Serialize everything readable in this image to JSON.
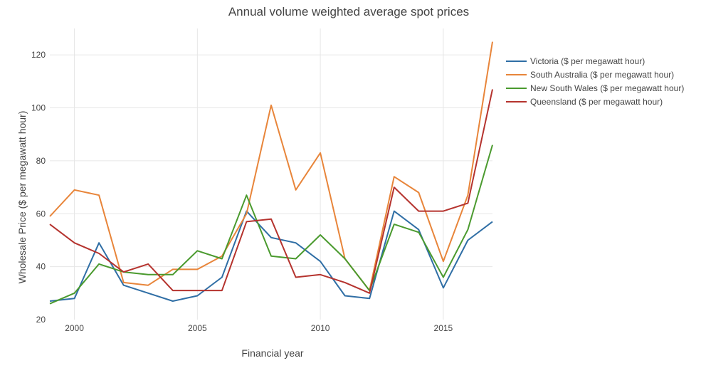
{
  "chart_data": {
    "type": "line",
    "title": "Annual volume weighted average spot prices",
    "xlabel": "Financial year",
    "ylabel": "Wholesale Price ($ per megawatt hour)",
    "x": [
      1999,
      2000,
      2001,
      2002,
      2003,
      2004,
      2005,
      2006,
      2007,
      2008,
      2009,
      2010,
      2011,
      2012,
      2013,
      2014,
      2015,
      2016,
      2017
    ],
    "xlim": [
      1999,
      2017
    ],
    "ylim": [
      20,
      130
    ],
    "x_ticks": [
      2000,
      2005,
      2010,
      2015
    ],
    "y_ticks": [
      20,
      40,
      60,
      80,
      100,
      120
    ],
    "grid": true,
    "legend_position": "top-right",
    "series": [
      {
        "name": "Victoria ($ per megawatt hour)",
        "color": "#2f6ea5",
        "values": [
          27,
          28,
          49,
          33,
          30,
          27,
          29,
          36,
          61,
          51,
          49,
          42,
          29,
          28,
          61,
          54,
          32,
          50,
          57
        ]
      },
      {
        "name": "South Australia ($ per megawatt hour)",
        "color": "#e8853a",
        "values": [
          59,
          69,
          67,
          34,
          33,
          39,
          39,
          44,
          60,
          101,
          69,
          83,
          43,
          31,
          74,
          68,
          42,
          67,
          125
        ]
      },
      {
        "name": "New South Wales ($ per megawatt hour)",
        "color": "#4a9a2e",
        "values": [
          26,
          30,
          41,
          38,
          37,
          37,
          46,
          43,
          67,
          44,
          43,
          52,
          43,
          31,
          56,
          53,
          36,
          54,
          86
        ]
      },
      {
        "name": "Queensland ($ per megawatt hour)",
        "color": "#b5332e",
        "values": [
          56,
          49,
          45,
          38,
          41,
          31,
          31,
          31,
          57,
          58,
          36,
          37,
          34,
          30,
          70,
          61,
          61,
          64,
          107
        ]
      }
    ]
  }
}
